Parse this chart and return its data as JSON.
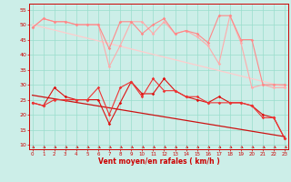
{
  "x": [
    0,
    1,
    2,
    3,
    4,
    5,
    6,
    7,
    8,
    9,
    10,
    11,
    12,
    13,
    14,
    15,
    16,
    17,
    18,
    19,
    20,
    21,
    22,
    23
  ],
  "series": [
    {
      "name": "rafales_light1",
      "color": "#ffaaaa",
      "linewidth": 0.8,
      "markersize": 1.8,
      "y": [
        49,
        52,
        51,
        51,
        50,
        50,
        50,
        36,
        43,
        51,
        51,
        47,
        51,
        47,
        48,
        46,
        43,
        37,
        53,
        44,
        29,
        30,
        29,
        29
      ]
    },
    {
      "name": "rafales_light2",
      "color": "#ff8888",
      "linewidth": 0.8,
      "markersize": 1.8,
      "y": [
        49,
        52,
        51,
        51,
        50,
        50,
        50,
        42,
        51,
        51,
        47,
        50,
        52,
        47,
        48,
        47,
        44,
        53,
        53,
        45,
        45,
        30,
        30,
        30
      ]
    },
    {
      "name": "linear_trend_light",
      "color": "#ffcccc",
      "linewidth": 0.9,
      "markersize": 0,
      "y": [
        50,
        49.1,
        48.2,
        47.3,
        46.4,
        45.5,
        44.6,
        43.7,
        42.8,
        41.9,
        41.0,
        40.1,
        39.2,
        38.3,
        37.4,
        36.5,
        35.6,
        34.7,
        33.8,
        32.9,
        32.0,
        31.1,
        30.2,
        29.3
      ]
    },
    {
      "name": "vent_moyen_zigzag",
      "color": "#dd1111",
      "linewidth": 0.8,
      "markersize": 1.8,
      "y": [
        24,
        23,
        29,
        26,
        25,
        25,
        25,
        17,
        24,
        31,
        27,
        27,
        32,
        28,
        26,
        25,
        24,
        26,
        24,
        24,
        23,
        20,
        19,
        12
      ]
    },
    {
      "name": "vent_moyen2",
      "color": "#ee3333",
      "linewidth": 0.8,
      "markersize": 1.8,
      "y": [
        24,
        23,
        25,
        25,
        25,
        25,
        29,
        20,
        29,
        31,
        26,
        32,
        28,
        28,
        26,
        26,
        24,
        24,
        24,
        24,
        23,
        19,
        19,
        12
      ]
    },
    {
      "name": "linear_trend_dark",
      "color": "#cc1111",
      "linewidth": 0.9,
      "markersize": 0,
      "y": [
        26.5,
        25.9,
        25.3,
        24.7,
        24.1,
        23.5,
        22.9,
        22.3,
        21.7,
        21.1,
        20.5,
        19.9,
        19.3,
        18.7,
        18.1,
        17.5,
        16.9,
        16.3,
        15.7,
        15.1,
        14.5,
        13.9,
        13.3,
        12.7
      ]
    }
  ],
  "xlabel": "Vent moyen/en rafales ( km/h )",
  "yticks": [
    10,
    15,
    20,
    25,
    30,
    35,
    40,
    45,
    50,
    55
  ],
  "xticks": [
    0,
    1,
    2,
    3,
    4,
    5,
    6,
    7,
    8,
    9,
    10,
    11,
    12,
    13,
    14,
    15,
    16,
    17,
    18,
    19,
    20,
    21,
    22,
    23
  ],
  "xlim": [
    -0.3,
    23.3
  ],
  "ylim": [
    8.5,
    57
  ],
  "bg_color": "#cceee8",
  "grid_color": "#99ddcc",
  "tick_color": "#cc0000",
  "label_color": "#cc0000"
}
